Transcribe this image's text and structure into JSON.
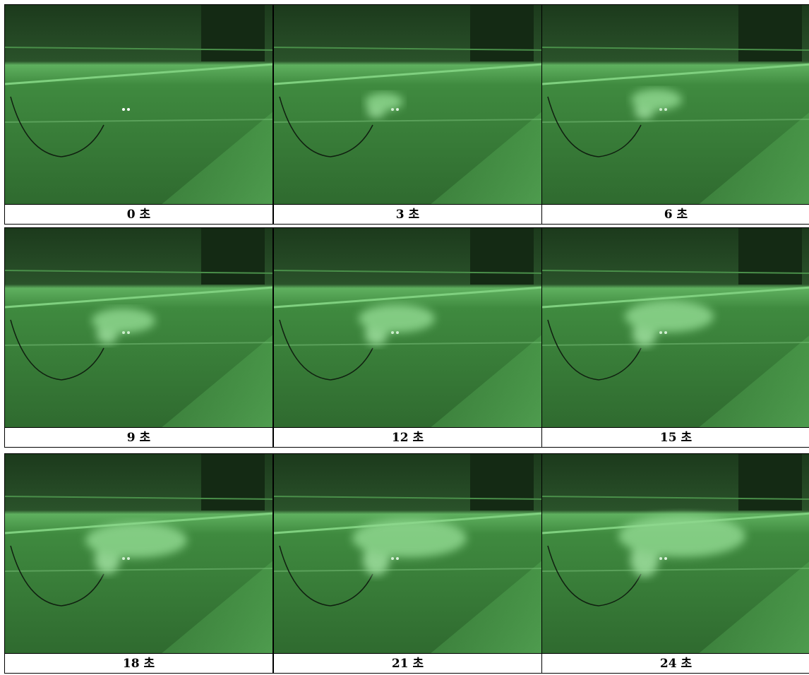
{
  "cells": [
    {
      "caption": "0 초"
    },
    {
      "caption": "3 초"
    },
    {
      "caption": "6 초"
    },
    {
      "caption": "9 초"
    },
    {
      "caption": "12 초"
    },
    {
      "caption": "15 초"
    },
    {
      "caption": "18 초"
    },
    {
      "caption": "21 초"
    },
    {
      "caption": "24 초"
    }
  ]
}
